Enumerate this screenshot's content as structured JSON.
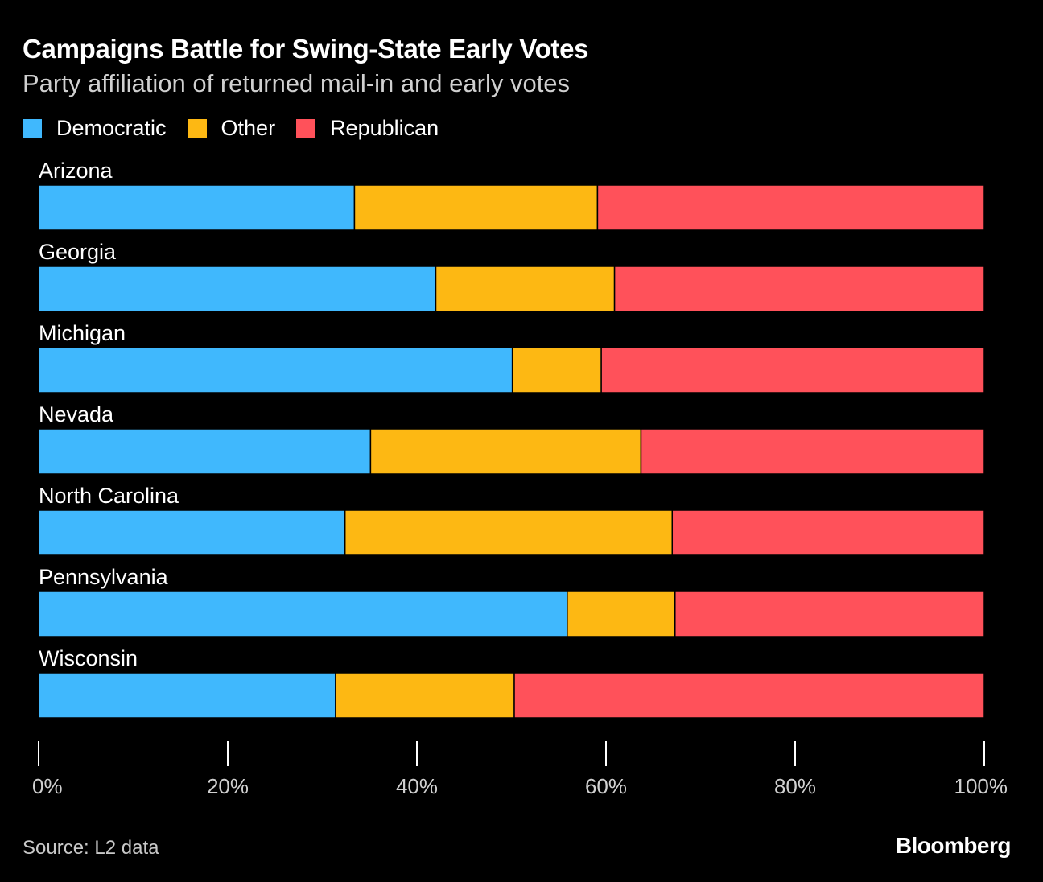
{
  "chart_data": {
    "type": "bar",
    "orientation": "horizontal",
    "stacked": true,
    "title": "Campaigns Battle for Swing-State Early Votes",
    "subtitle": "Party affiliation of returned mail-in and early votes",
    "categories": [
      "Arizona",
      "Georgia",
      "Michigan",
      "Nevada",
      "North Carolina",
      "Pennsylvania",
      "Wisconsin"
    ],
    "series": [
      {
        "name": "Democratic",
        "color": "#40b8fd",
        "values": [
          33.4,
          42.0,
          50.1,
          35.1,
          32.4,
          55.9,
          31.4
        ]
      },
      {
        "name": "Other",
        "color": "#fdb813",
        "values": [
          25.7,
          18.9,
          9.4,
          28.6,
          34.6,
          11.4,
          18.9
        ]
      },
      {
        "name": "Republican",
        "color": "#ff515a",
        "values": [
          40.9,
          39.1,
          40.5,
          36.3,
          33.0,
          32.7,
          49.7
        ]
      }
    ],
    "xlim": [
      0,
      100
    ],
    "xticks": [
      "0%",
      "20%",
      "40%",
      "60%",
      "80%",
      "100%"
    ],
    "legend": "top-left",
    "grid": false
  },
  "footer": {
    "source": "Source: L2 data",
    "logo": "Bloomberg"
  }
}
